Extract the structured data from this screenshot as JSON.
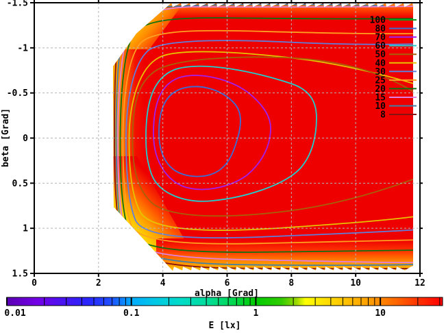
{
  "chart_data": {
    "type": "contour-heatmap",
    "title": "",
    "xlabel": "alpha [Grad]",
    "ylabel": "beta [Grad]",
    "xlim": [
      0,
      12
    ],
    "ylim": [
      -1.5,
      1.5
    ],
    "y_axis_inverted": true,
    "grid": true,
    "x_tick_values": [
      0,
      2,
      4,
      6,
      8,
      10,
      12
    ],
    "x_tick_labels": [
      "0",
      "2",
      "4",
      "6",
      "8",
      "10",
      "12"
    ],
    "y_tick_values": [
      -1.5,
      -1,
      -0.5,
      0,
      0.5,
      1,
      1.5
    ],
    "y_tick_labels": [
      "-1.5",
      "-1",
      "-0.5",
      "0",
      "0.5",
      "1",
      "1.5"
    ],
    "fill_color": "#ee0000",
    "background": "#ffffff",
    "grid_color": "#b4b4b4",
    "surface_alpha_range": [
      2.5,
      11.8
    ],
    "innermost_contour_level": 80,
    "peak_region": {
      "alpha_approx": 5.5,
      "beta_approx": 0.1
    },
    "drawn_contour_levels": [
      8,
      10,
      15,
      20,
      25,
      30,
      40,
      50,
      60,
      70,
      80
    ],
    "legend": {
      "position": "top-right",
      "entries": [
        {
          "label": "100",
          "level": 100,
          "color": "#00a020"
        },
        {
          "label": "80",
          "level": 80,
          "color": "#3a6fd8"
        },
        {
          "label": "70",
          "level": 70,
          "color": "#a020f0"
        },
        {
          "label": "60",
          "level": 60,
          "color": "#20cfcf"
        },
        {
          "label": "50",
          "level": 50,
          "color": "#a86008"
        },
        {
          "label": "40",
          "level": 40,
          "color": "#e6c400"
        },
        {
          "label": "30",
          "level": 30,
          "color": "#5f7fdd"
        },
        {
          "label": "25",
          "level": 25,
          "color": "#ffa020"
        },
        {
          "label": "20",
          "level": 20,
          "color": "#107010"
        },
        {
          "label": "15",
          "level": 15,
          "color": "#e080e0"
        },
        {
          "label": "10",
          "level": 10,
          "color": "#3f7fa8"
        },
        {
          "label": "8",
          "level": 8,
          "color": "#881111"
        }
      ]
    },
    "colorbar": {
      "label": "E [lx]",
      "scale": "log",
      "range": [
        0.01,
        31.6
      ],
      "tick_labels": [
        "0.01",
        "0.1",
        "1",
        "10"
      ],
      "tick_values": [
        0.01,
        0.1,
        1,
        10
      ],
      "gradient": [
        [
          "0",
          "#5a00b4"
        ],
        [
          "7",
          "#7300e6"
        ],
        [
          "13",
          "#4814f0"
        ],
        [
          "19",
          "#2828ff"
        ],
        [
          "24",
          "#2050ff"
        ],
        [
          "28.5",
          "#00aaff"
        ],
        [
          "34",
          "#00c8e6"
        ],
        [
          "40",
          "#00dcc8"
        ],
        [
          "46",
          "#00dd9b"
        ],
        [
          "52",
          "#00d850"
        ],
        [
          "57",
          "#00cc00"
        ],
        [
          "63",
          "#30cc00"
        ],
        [
          "66.5",
          "#9cd800"
        ],
        [
          "68.5",
          "#ffff00"
        ],
        [
          "73",
          "#ffe000"
        ],
        [
          "78",
          "#ffc000"
        ],
        [
          "84",
          "#ff9800"
        ],
        [
          "90",
          "#ff6000"
        ],
        [
          "95",
          "#ff2d00"
        ],
        [
          "100",
          "#ff0000"
        ]
      ]
    }
  }
}
